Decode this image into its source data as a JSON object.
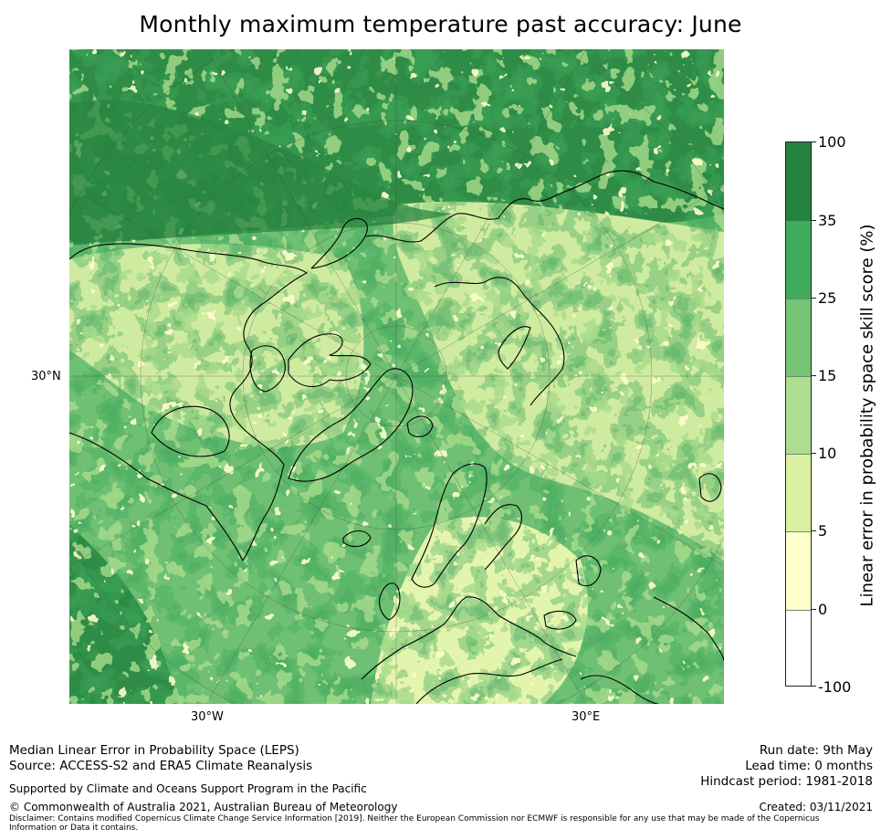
{
  "title": "Monthly maximum temperature past accuracy: June",
  "map": {
    "lon_labels": [
      "30°W",
      "30°E"
    ],
    "lat_labels": [
      "30°N"
    ],
    "projection": "north-polar-stereographic",
    "colors": {
      "ocean_deep": "#24833f",
      "ocean": "#41a75b",
      "mid": "#74c476",
      "light": "#a1d98b",
      "pale": "#d8f0a3",
      "cream": "#fefecf",
      "white": "#ffffff",
      "coast": "#000000"
    }
  },
  "colorbar": {
    "title": "Linear error in probability space skill score (%)",
    "tick_labels": [
      "100",
      "35",
      "25",
      "15",
      "10",
      "5",
      "0",
      "-100"
    ],
    "bins": [
      {
        "range": "35 to 100",
        "color": "#24833f"
      },
      {
        "range": "25 to 35",
        "color": "#41ab5d"
      },
      {
        "range": "15 to 25",
        "color": "#74c476"
      },
      {
        "range": "10 to 15",
        "color": "#addd8e"
      },
      {
        "range": "5 to 10",
        "color": "#d9f0a3"
      },
      {
        "range": "0 to 5",
        "color": "#ffffcc"
      },
      {
        "range": "-100 to 0",
        "color": "#ffffff"
      }
    ]
  },
  "footer": {
    "left_line1": "Median Linear Error in Probability Space (LEPS)",
    "left_line2": "Source: ACCESS-S2 and ERA5 Climate Reanalysis",
    "supported": "Supported by Climate and Oceans Support Program in the Pacific",
    "copyright": "© Commonwealth of Australia 2021, Australian Bureau of Meteorology",
    "disclaimer": "Disclaimer: Contains modified Copernicus Climate Change Service Information [2019]. Neither the European Commission nor ECMWF is responsible for any use that may be made of the Copernicus Information or Data it contains.",
    "run_date": "Run date: 9th May",
    "lead_time": "Lead time: 0 months",
    "hindcast": "Hindcast period: 1981-2018",
    "created": "Created: 03/11/2021"
  }
}
